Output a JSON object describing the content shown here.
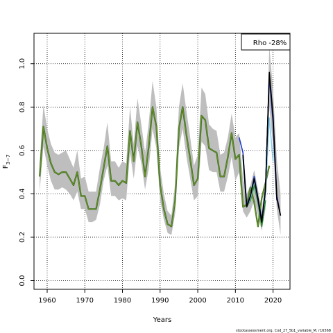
{
  "chart_data": {
    "type": "line",
    "xlabel": "Years",
    "ylabel": "F",
    "ylabel_sub": "3−7",
    "legend_text": "Rho -28%",
    "footer": "stockassessment.org, Cod_27_5b1_variable_M, r16568",
    "xlim": [
      1956.5,
      2024.5
    ],
    "ylim": [
      -0.04,
      1.14
    ],
    "x_ticks": [
      1960,
      1970,
      1980,
      1990,
      2000,
      2010,
      2020
    ],
    "y_ticks": [
      0.0,
      0.2,
      0.4,
      0.6,
      0.8,
      1.0
    ],
    "y_tick_labels": [
      "0.0",
      "0.2",
      "0.4",
      "0.6",
      "0.8",
      "1.0"
    ],
    "grid": true,
    "legend_position": "top-right",
    "colors": {
      "band": "#bebebe",
      "main": "#6b8e23",
      "main_dark": "#1a5e1a",
      "retro_black": "#000000",
      "retro_navy": "#191970",
      "retro_blue": "#1e3cc8",
      "retro_sky": "#87ceeb",
      "retro_olive": "#6b8e23",
      "retro_green": "#228b22"
    },
    "band": {
      "x": [
        1958,
        1959,
        1960,
        1961,
        1962,
        1963,
        1964,
        1965,
        1966,
        1967,
        1968,
        1969,
        1970,
        1971,
        1972,
        1973,
        1974,
        1975,
        1976,
        1977,
        1978,
        1979,
        1980,
        1981,
        1982,
        1983,
        1984,
        1985,
        1986,
        1987,
        1988,
        1989,
        1990,
        1991,
        1992,
        1993,
        1994,
        1995,
        1996,
        1997,
        1998,
        1999,
        2000,
        2001,
        2002,
        2003,
        2004,
        2005,
        2006,
        2007,
        2008,
        2009,
        2010,
        2011,
        2012
      ],
      "upper": [
        0.54,
        0.81,
        0.7,
        0.63,
        0.59,
        0.58,
        0.59,
        0.6,
        0.56,
        0.52,
        0.6,
        0.47,
        0.48,
        0.41,
        0.41,
        0.41,
        0.52,
        0.61,
        0.73,
        0.55,
        0.55,
        0.52,
        0.55,
        0.54,
        0.8,
        0.63,
        0.84,
        0.72,
        0.59,
        0.73,
        0.92,
        0.8,
        0.52,
        0.4,
        0.32,
        0.3,
        0.45,
        0.8,
        0.91,
        0.78,
        0.66,
        0.53,
        0.58,
        0.89,
        0.86,
        0.72,
        0.7,
        0.69,
        0.58,
        0.59,
        0.66,
        0.77,
        0.66,
        0.68,
        0.47
      ],
      "lower": [
        0.41,
        0.62,
        0.53,
        0.46,
        0.42,
        0.42,
        0.43,
        0.42,
        0.4,
        0.37,
        0.41,
        0.33,
        0.33,
        0.27,
        0.27,
        0.28,
        0.35,
        0.46,
        0.53,
        0.39,
        0.39,
        0.37,
        0.38,
        0.37,
        0.59,
        0.47,
        0.62,
        0.54,
        0.42,
        0.52,
        0.7,
        0.61,
        0.37,
        0.28,
        0.22,
        0.21,
        0.31,
        0.61,
        0.7,
        0.57,
        0.47,
        0.37,
        0.39,
        0.64,
        0.62,
        0.51,
        0.5,
        0.5,
        0.41,
        0.41,
        0.48,
        0.57,
        0.46,
        0.5,
        0.32
      ]
    },
    "retro_band": {
      "x": [
        2012,
        2013,
        2014,
        2015,
        2016,
        2017,
        2018,
        2019,
        2020,
        2021,
        2022
      ],
      "upper": [
        0.47,
        0.4,
        0.44,
        0.51,
        0.42,
        0.32,
        0.46,
        1.08,
        0.88,
        0.56,
        0.4
      ],
      "lower": [
        0.32,
        0.29,
        0.32,
        0.37,
        0.3,
        0.23,
        0.33,
        0.8,
        0.62,
        0.33,
        0.21
      ]
    },
    "series": [
      {
        "color": "#6b8e23",
        "x": [
          1958,
          1959,
          1960,
          1961,
          1962,
          1963,
          1964,
          1965,
          1966,
          1967,
          1968,
          1969,
          1970,
          1971,
          1972,
          1973,
          1974,
          1975,
          1976,
          1977,
          1978,
          1979,
          1980,
          1981,
          1982,
          1983,
          1984,
          1985,
          1986,
          1987,
          1988,
          1989,
          1990,
          1991,
          1992,
          1993,
          1994,
          1995,
          1996,
          1997,
          1998,
          1999,
          2000,
          2001,
          2002,
          2003,
          2004,
          2005,
          2006,
          2007,
          2008,
          2009,
          2010,
          2011,
          2012,
          2013,
          2014,
          2015,
          2016,
          2017,
          2018,
          2019
        ],
        "values": [
          0.48,
          0.71,
          0.61,
          0.54,
          0.5,
          0.49,
          0.5,
          0.5,
          0.47,
          0.44,
          0.5,
          0.39,
          0.39,
          0.33,
          0.33,
          0.33,
          0.42,
          0.52,
          0.62,
          0.46,
          0.46,
          0.44,
          0.46,
          0.45,
          0.69,
          0.55,
          0.73,
          0.62,
          0.48,
          0.62,
          0.8,
          0.71,
          0.44,
          0.33,
          0.26,
          0.25,
          0.37,
          0.7,
          0.8,
          0.67,
          0.56,
          0.44,
          0.47,
          0.76,
          0.74,
          0.61,
          0.6,
          0.59,
          0.48,
          0.48,
          0.57,
          0.68,
          0.56,
          0.58,
          0.34,
          0.35,
          0.43,
          0.36,
          0.25,
          0.38,
          0.45,
          0.53
        ]
      },
      {
        "color": "#228b22",
        "x": [
          2012,
          2013,
          2014,
          2015,
          2016,
          2017,
          2018
        ],
        "values": [
          0.57,
          0.34,
          0.37,
          0.44,
          0.36,
          0.25,
          0.37
        ]
      },
      {
        "color": "#87ceeb",
        "x": [
          2012,
          2013,
          2014,
          2015,
          2016,
          2017,
          2018,
          2019,
          2020
        ],
        "values": [
          0.57,
          0.34,
          0.38,
          0.46,
          0.37,
          0.27,
          0.4,
          0.75,
          0.55
        ]
      },
      {
        "color": "#1e3cc8",
        "x": [
          2011,
          2012,
          2013,
          2014,
          2015,
          2016,
          2017,
          2018,
          2019,
          2020,
          2021
        ],
        "values": [
          0.66,
          0.59,
          0.35,
          0.39,
          0.48,
          0.38,
          0.28,
          0.42,
          0.94,
          0.73,
          0.37
        ]
      },
      {
        "color": "#191970",
        "x": [
          2012,
          2013,
          2014,
          2015,
          2016,
          2017,
          2018,
          2019,
          2020,
          2021,
          2022
        ],
        "values": [
          0.58,
          0.34,
          0.39,
          0.47,
          0.37,
          0.27,
          0.42,
          0.95,
          0.75,
          0.39,
          0.3
        ]
      },
      {
        "color": "#000000",
        "x": [
          2012,
          2013,
          2014,
          2015,
          2016,
          2017,
          2018,
          2019,
          2020,
          2021,
          2022
        ],
        "values": [
          0.58,
          0.34,
          0.39,
          0.47,
          0.38,
          0.27,
          0.42,
          0.96,
          0.76,
          0.38,
          0.3
        ]
      }
    ]
  }
}
